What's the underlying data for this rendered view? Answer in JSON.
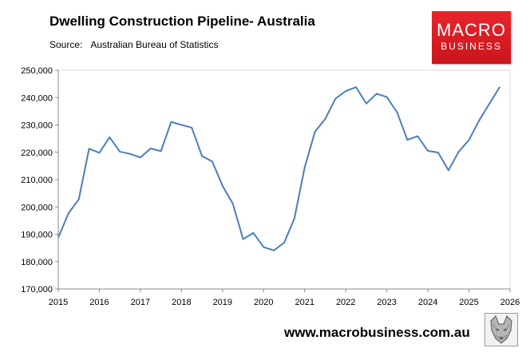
{
  "header": {
    "title": "Dwelling Construction Pipeline- Australia",
    "source_label": "Source:",
    "source_value": "Australian Bureau of Statistics"
  },
  "logo": {
    "line1": "MACRO",
    "line2": "BUSINESS",
    "color": "#d71f26"
  },
  "footer": {
    "website": "www.macrobusiness.com.au"
  },
  "chart_data": {
    "type": "line",
    "title": "Dwelling Construction Pipeline- Australia",
    "xlabel": "",
    "ylabel": "",
    "xlim": [
      2015,
      2026
    ],
    "ylim": [
      170000,
      250000
    ],
    "x_ticks": [
      2015,
      2016,
      2017,
      2018,
      2019,
      2020,
      2021,
      2022,
      2023,
      2024,
      2025,
      2026
    ],
    "y_ticks": [
      170000,
      180000,
      190000,
      200000,
      210000,
      220000,
      230000,
      240000,
      250000
    ],
    "y_tick_labels": [
      "170,000",
      "180,000",
      "190,000",
      "200,000",
      "210,000",
      "220,000",
      "230,000",
      "240,000",
      "250,000"
    ],
    "grid": false,
    "legend": "none",
    "line_color": "#4a7ebb",
    "series": [
      {
        "x": [
          2015.0,
          2015.25,
          2015.5,
          2015.75,
          2016.0,
          2016.25,
          2016.5,
          2016.75,
          2017.0,
          2017.25,
          2017.5,
          2017.75,
          2018.0,
          2018.25,
          2018.5,
          2018.75,
          2019.0,
          2019.25,
          2019.5,
          2019.75,
          2020.0,
          2020.25,
          2020.5,
          2020.75,
          2021.0,
          2021.25,
          2021.5,
          2021.75,
          2022.0,
          2022.25,
          2022.5,
          2022.75,
          2023.0,
          2023.25,
          2023.5,
          2023.75,
          2024.0,
          2024.25,
          2024.5,
          2024.75,
          2025.0,
          2025.25,
          2025.5,
          2025.75
        ],
        "values": [
          188800,
          197700,
          202800,
          221300,
          219800,
          225500,
          220200,
          219400,
          218100,
          221400,
          220400,
          231100,
          230000,
          229000,
          218600,
          216600,
          207700,
          201200,
          188200,
          190500,
          185300,
          184100,
          186900,
          195800,
          214500,
          227500,
          232200,
          239600,
          242400,
          243800,
          237800,
          241400,
          240200,
          234600,
          224500,
          225900,
          220500,
          219900,
          213400,
          220200,
          224500,
          231700,
          237800,
          243900
        ]
      }
    ]
  }
}
